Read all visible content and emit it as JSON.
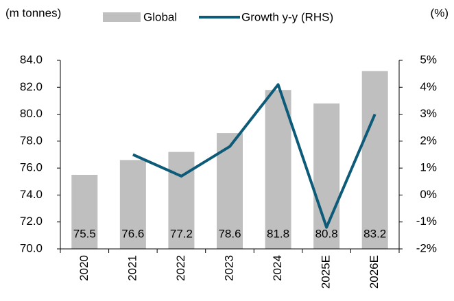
{
  "chart_data": {
    "type": "bar",
    "ylabel": "(m tonnes)",
    "y2label": "(%)",
    "categories": [
      "2020",
      "2021",
      "2022",
      "2023",
      "2024",
      "2025E",
      "2026E"
    ],
    "series": [
      {
        "name": "Global",
        "color": "#bfbfbf",
        "values": [
          75.5,
          76.6,
          77.2,
          78.6,
          81.8,
          80.8,
          83.2
        ]
      },
      {
        "name": "Growth y-y (RHS)",
        "type": "line",
        "axis": "y2",
        "color": "#0d5b78",
        "values": [
          null,
          1.5,
          0.7,
          1.8,
          4.1,
          -1.2,
          3.0
        ]
      }
    ],
    "ylim": [
      70,
      84
    ],
    "yticks": [
      {
        "value": 70,
        "label": "70.0"
      },
      {
        "value": 72,
        "label": "72.0"
      },
      {
        "value": 74,
        "label": "74.0"
      },
      {
        "value": 76,
        "label": "76.0"
      },
      {
        "value": 78,
        "label": "78.0"
      },
      {
        "value": 80,
        "label": "80.0"
      },
      {
        "value": 82,
        "label": "82.0"
      },
      {
        "value": 84,
        "label": "84.0"
      }
    ],
    "y2lim": [
      -2,
      5
    ],
    "y2ticks": [
      {
        "value": -2,
        "label": "-2%"
      },
      {
        "value": -1,
        "label": "-1%"
      },
      {
        "value": 0,
        "label": "0%"
      },
      {
        "value": 1,
        "label": "1%"
      },
      {
        "value": 2,
        "label": "2%"
      },
      {
        "value": 3,
        "label": "3%"
      },
      {
        "value": 4,
        "label": "4%"
      },
      {
        "value": 5,
        "label": "5%"
      }
    ],
    "grid": false,
    "legend": "top"
  }
}
